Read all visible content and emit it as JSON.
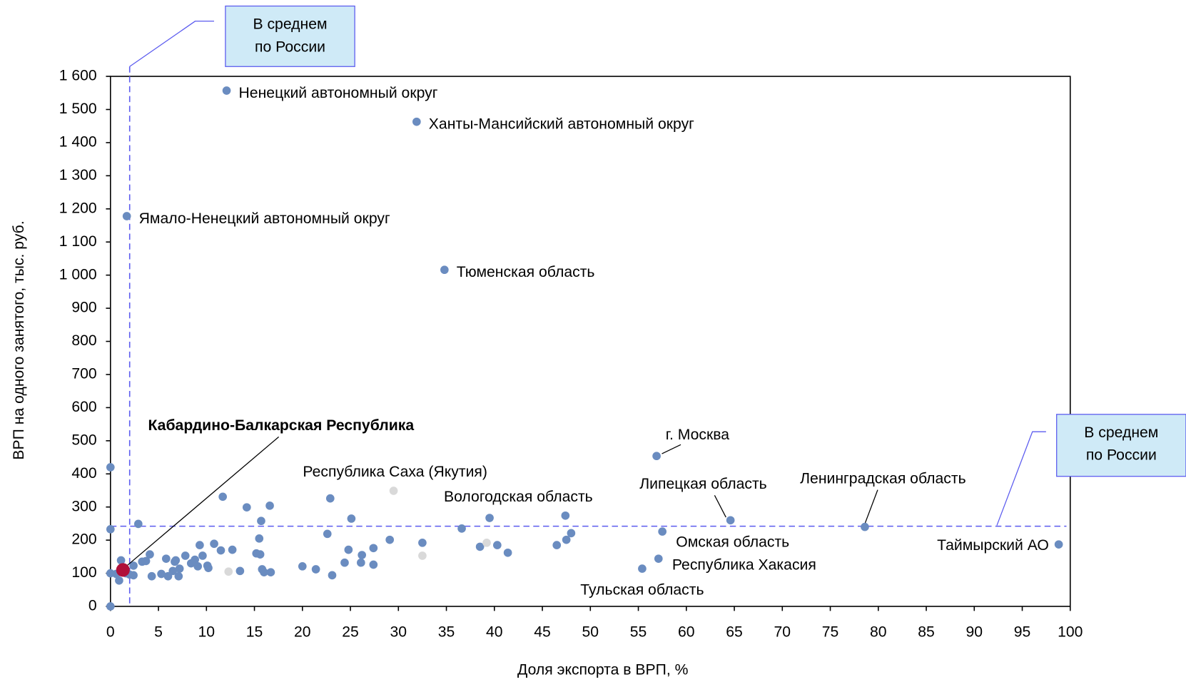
{
  "chart_data": {
    "type": "scatter",
    "x_label": "Доля экспорта в ВРП, %",
    "y_label": "ВРП  на одного занятого, тыс.  руб.",
    "xlim": [
      0,
      100
    ],
    "ylim": [
      0,
      1600
    ],
    "xticks": [
      0,
      5,
      10,
      15,
      20,
      25,
      30,
      35,
      40,
      45,
      50,
      55,
      60,
      65,
      70,
      75,
      80,
      85,
      90,
      95,
      100
    ],
    "yticks": [
      0,
      100,
      200,
      300,
      400,
      500,
      600,
      700,
      800,
      900,
      {
        "value": 1000,
        "label": "1 000"
      },
      {
        "value": 1100,
        "label": "1 100"
      },
      {
        "value": 1200,
        "label": "1 200"
      },
      {
        "value": 1300,
        "label": "1 300"
      },
      {
        "value": 1400,
        "label": "1 400"
      },
      {
        "value": 1500,
        "label": "1 500"
      },
      {
        "value": 1600,
        "label": "1 600"
      }
    ],
    "reference_lines": {
      "x": 2.0,
      "y": 242,
      "color": "#5b5bef"
    },
    "annotations": [
      {
        "lines": [
          "В среднем",
          "по России"
        ]
      },
      {
        "lines": [
          "В среднем",
          "по России"
        ]
      }
    ],
    "labeled_points": [
      {
        "label": "Ненецкий автономный округ",
        "x": 12.1,
        "y": 1557,
        "color": "#6a8cc0"
      },
      {
        "label": "Ханты-Мансийский автономный округ",
        "x": 31.9,
        "y": 1463,
        "color": "#6a8cc0"
      },
      {
        "label": "Ямало-Ненецкий автономный округ",
        "x": 1.7,
        "y": 1178,
        "color": "#6a8cc0"
      },
      {
        "label": "Тюменская область",
        "x": 34.8,
        "y": 1016,
        "color": "#6a8cc0"
      },
      {
        "label": "г. Москва",
        "x": 56.9,
        "y": 454,
        "color": "#6a8cc0"
      },
      {
        "label": "Липецкая область",
        "x": 64.6,
        "y": 260,
        "color": "#6a8cc0"
      },
      {
        "label": "Ленинградская область",
        "x": 78.6,
        "y": 240,
        "color": "#6a8cc0"
      },
      {
        "label": "Таймырский АО",
        "x": 98.8,
        "y": 187,
        "color": "#6a8cc0"
      },
      {
        "label": "Омская область",
        "x": 57.5,
        "y": 226,
        "color": "#6a8cc0"
      },
      {
        "label": "Республика Хакасия",
        "x": 57.1,
        "y": 144,
        "color": "#6a8cc0"
      },
      {
        "label": "Тульская область",
        "x": 55.4,
        "y": 114,
        "color": "#6a8cc0"
      },
      {
        "label": "Вологодская область",
        "x": 39.5,
        "y": 267,
        "color": "#6a8cc0"
      },
      {
        "label": "Республика Саха (Якутия)",
        "x": 29.5,
        "y": 349,
        "color": "#d9d9d9"
      },
      {
        "label": "Кабардино-Балкарская Республика",
        "x": 1.3,
        "y": 110,
        "color": "#b0103a"
      }
    ],
    "series": [
      {
        "color": "#6a8cc0",
        "x": [
          0,
          0,
          0,
          0,
          0.6,
          1.1,
          0.9,
          1.6,
          2.0,
          2.4,
          2.9,
          2.4,
          3.3,
          3.7,
          4.1,
          4.3,
          5.3,
          5.8,
          6.0,
          6.5,
          6.7,
          6.8,
          7.1,
          7.2,
          7.8,
          8.4,
          8.8,
          9.1,
          9.3,
          9.6,
          10.1,
          10.2,
          10.8,
          11.5,
          11.7,
          12.7,
          13.5,
          14.2,
          15.2,
          15.6,
          15.7,
          15.5,
          15.8,
          16.0,
          16.6,
          16.7,
          20.0,
          21.4,
          22.6,
          22.9,
          23.1,
          24.4,
          24.8,
          25.1,
          26.1,
          26.2,
          27.4,
          27.4,
          29.1,
          32.5,
          36.6,
          38.5,
          40.3,
          41.4,
          46.5,
          47.5,
          48.0,
          47.4
        ],
        "y": [
          420,
          233,
          100,
          0,
          98,
          139,
          78,
          100,
          96,
          94,
          249,
          123,
          135,
          137,
          157,
          91,
          98,
          144,
          91,
          107,
          135,
          139,
          91,
          114,
          153,
          130,
          141,
          121,
          185,
          153,
          123,
          116,
          189,
          169,
          331,
          171,
          107,
          299,
          160,
          157,
          258,
          205,
          112,
          103,
          304,
          103,
          121,
          112,
          219,
          326,
          94,
          132,
          171,
          265,
          132,
          155,
          176,
          126,
          201,
          192,
          235,
          180,
          185,
          162,
          185,
          201,
          221,
          274
        ]
      },
      {
        "color": "#d9d9d9",
        "x": [
          12.3,
          32.5,
          39.2
        ],
        "y": [
          105,
          153,
          192
        ]
      }
    ]
  }
}
